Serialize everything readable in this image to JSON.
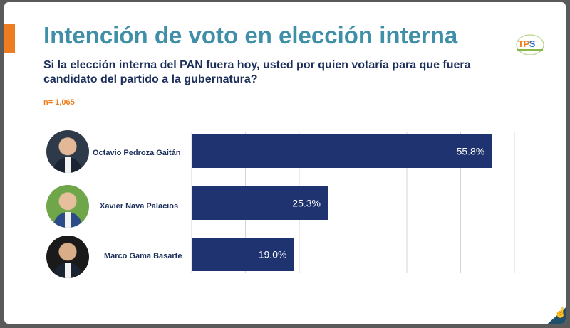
{
  "header": {
    "title": "Intención de voto en elección interna",
    "subtitle": "Si la elección interna del PAN fuera hoy, usted por quien votaría para que fuera candidato del partido a la gubernatura?",
    "sample": "n= 1,065"
  },
  "logo": {
    "text_a": "TP",
    "text_b": "S"
  },
  "colors": {
    "bar": "#1f3370",
    "title": "#3f8fa8",
    "accent": "#ee7d22",
    "grid": "#d4d4d4"
  },
  "chart_data": {
    "type": "bar",
    "orientation": "horizontal",
    "categories": [
      "Octavio Pedroza Gaitán",
      "Xavier Nava Palacios",
      "Marco Gama Basarte"
    ],
    "values": [
      55.8,
      25.3,
      19.0
    ],
    "value_labels": [
      "55.8%",
      "25.3%",
      "19.0%"
    ],
    "xlim": [
      0,
      60
    ],
    "grid": true
  },
  "candidates": [
    {
      "name": "Octavio Pedroza Gaitán",
      "photo_icon": "person-photo"
    },
    {
      "name": "Xavier Nava Palacios",
      "photo_icon": "person-photo"
    },
    {
      "name": "Marco Gama Basarte",
      "photo_icon": "person-photo"
    }
  ],
  "footer": {
    "icon": "hand-pointer-icon"
  }
}
